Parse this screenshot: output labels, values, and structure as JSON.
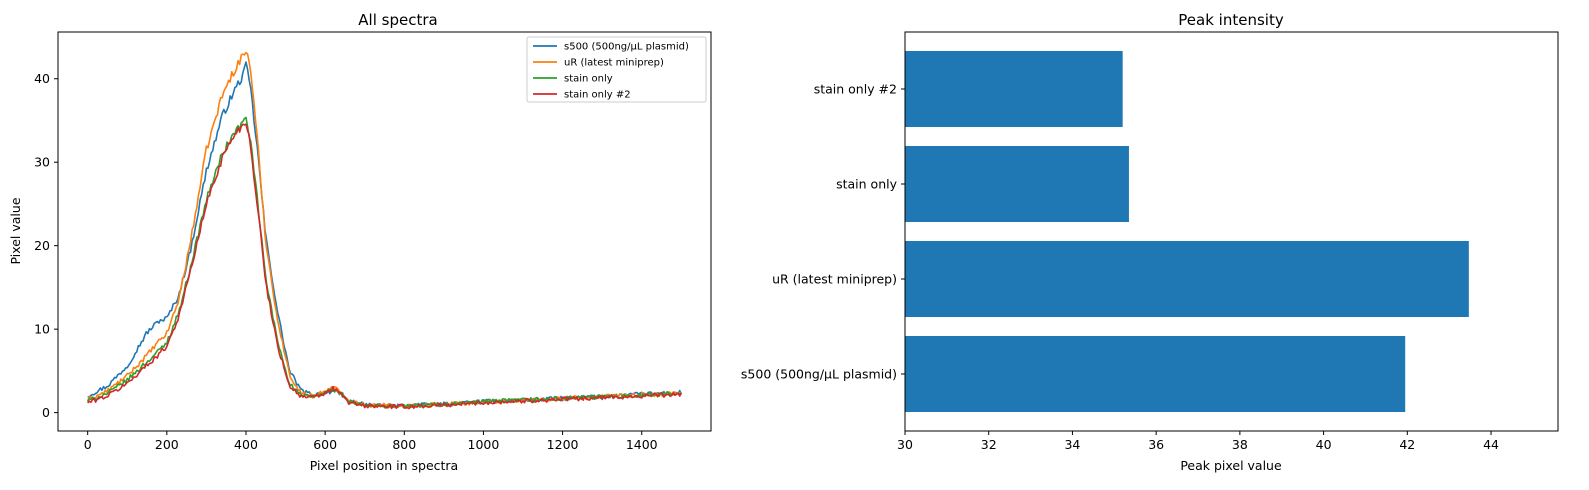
{
  "chart_data": [
    {
      "type": "line",
      "title": "All spectra",
      "xlabel": "Pixel position in spectra",
      "ylabel": "Pixel value",
      "xlim": [
        -75,
        1575
      ],
      "ylim": [
        -2.2,
        45.6
      ],
      "xticks": [
        0,
        200,
        400,
        600,
        800,
        1000,
        1200,
        1400
      ],
      "yticks": [
        0,
        10,
        20,
        30,
        40
      ],
      "legend_position": "top-right",
      "x": [
        0,
        50,
        100,
        150,
        180,
        200,
        230,
        260,
        300,
        340,
        370,
        390,
        400,
        410,
        430,
        450,
        480,
        510,
        540,
        570,
        600,
        620,
        640,
        660,
        700,
        800,
        900,
        1000,
        1100,
        1200,
        1300,
        1400,
        1500
      ],
      "series": [
        {
          "name": "s500 (500ng/µL plasmid)",
          "color": "#1f77b4",
          "values": [
            2.0,
            3.2,
            5.6,
            9.6,
            11.0,
            11.3,
            14.0,
            19.5,
            29.0,
            35.5,
            38.5,
            40.2,
            41.5,
            39.5,
            31.0,
            21.0,
            12.0,
            5.0,
            2.6,
            2.1,
            2.4,
            2.6,
            2.2,
            1.4,
            0.9,
            0.8,
            1.0,
            1.3,
            1.5,
            1.7,
            1.9,
            2.2,
            2.4
          ]
        },
        {
          "name": "uR (latest miniprep)",
          "color": "#ff7f0e",
          "values": [
            1.5,
            2.6,
            4.4,
            6.9,
            8.5,
            9.5,
            13.5,
            20.5,
            31.5,
            38.0,
            41.0,
            42.6,
            43.3,
            42.0,
            32.0,
            20.5,
            11.0,
            4.5,
            2.3,
            2.0,
            2.6,
            3.0,
            2.5,
            1.5,
            0.9,
            0.8,
            1.0,
            1.3,
            1.5,
            1.7,
            1.9,
            2.1,
            2.3
          ]
        },
        {
          "name": "stain only",
          "color": "#2ca02c",
          "values": [
            1.4,
            2.3,
            3.9,
            6.1,
            7.4,
            8.4,
            12.0,
            17.5,
            25.5,
            31.0,
            33.5,
            34.6,
            35.2,
            33.0,
            25.0,
            16.0,
            8.5,
            3.5,
            2.0,
            1.9,
            2.4,
            2.8,
            2.3,
            1.3,
            0.8,
            0.8,
            1.0,
            1.3,
            1.5,
            1.7,
            1.9,
            2.1,
            2.3
          ]
        },
        {
          "name": "stain only #2",
          "color": "#d62728",
          "values": [
            1.2,
            2.0,
            3.5,
            5.7,
            7.0,
            8.0,
            11.5,
            17.0,
            25.0,
            30.5,
            33.3,
            34.3,
            35.0,
            32.5,
            24.5,
            15.5,
            8.0,
            3.2,
            1.9,
            1.8,
            2.3,
            2.9,
            2.2,
            1.2,
            0.8,
            0.7,
            0.9,
            1.2,
            1.4,
            1.6,
            1.8,
            2.0,
            2.2
          ]
        }
      ]
    },
    {
      "type": "bar",
      "orientation": "horizontal",
      "title": "Peak intensity",
      "xlabel": "Peak pixel value",
      "ylabel": "",
      "xlim": [
        30,
        45.6
      ],
      "xticks": [
        30,
        32,
        34,
        36,
        38,
        40,
        42,
        44
      ],
      "bar_color": "#1f77b4",
      "categories": [
        "s500 (500ng/µL plasmid)",
        "uR (latest miniprep)",
        "stain only",
        "stain only #2"
      ],
      "values": [
        41.95,
        43.47,
        35.35,
        35.2
      ]
    }
  ]
}
